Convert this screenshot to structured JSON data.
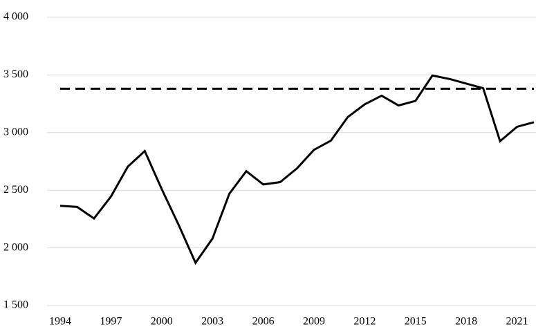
{
  "chart_data": {
    "type": "line",
    "x": [
      1994,
      1995,
      1996,
      1997,
      1998,
      1999,
      2000,
      2001,
      2002,
      2003,
      2004,
      2005,
      2006,
      2007,
      2008,
      2009,
      2010,
      2011,
      2012,
      2013,
      2014,
      2015,
      2016,
      2017,
      2018,
      2019,
      2020,
      2021,
      2022
    ],
    "series": [
      {
        "color": "#000000",
        "values": [
          2365,
          2355,
          2255,
          2445,
          2705,
          2840,
          2510,
          2200,
          1870,
          2080,
          2470,
          2665,
          2550,
          2570,
          2690,
          2850,
          2930,
          3135,
          3245,
          3320,
          3235,
          3275,
          3495,
          3465,
          3425,
          3385,
          2925,
          3050,
          3090
        ]
      }
    ],
    "reference_line": {
      "value": 3380,
      "color": "#000000",
      "style": "dashed"
    },
    "xlim": [
      1994,
      2022
    ],
    "xticks": [
      1994,
      1997,
      2000,
      2003,
      2006,
      2009,
      2012,
      2015,
      2018,
      2021
    ],
    "ylim": [
      1500,
      4000
    ],
    "yticks": [
      {
        "value": 1500,
        "label": "1 500"
      },
      {
        "value": 2000,
        "label": "2 000"
      },
      {
        "value": 2500,
        "label": "2 500"
      },
      {
        "value": 3000,
        "label": "3 000"
      },
      {
        "value": 3500,
        "label": "3 500"
      },
      {
        "value": 4000,
        "label": "4 000"
      }
    ],
    "grid": true
  }
}
